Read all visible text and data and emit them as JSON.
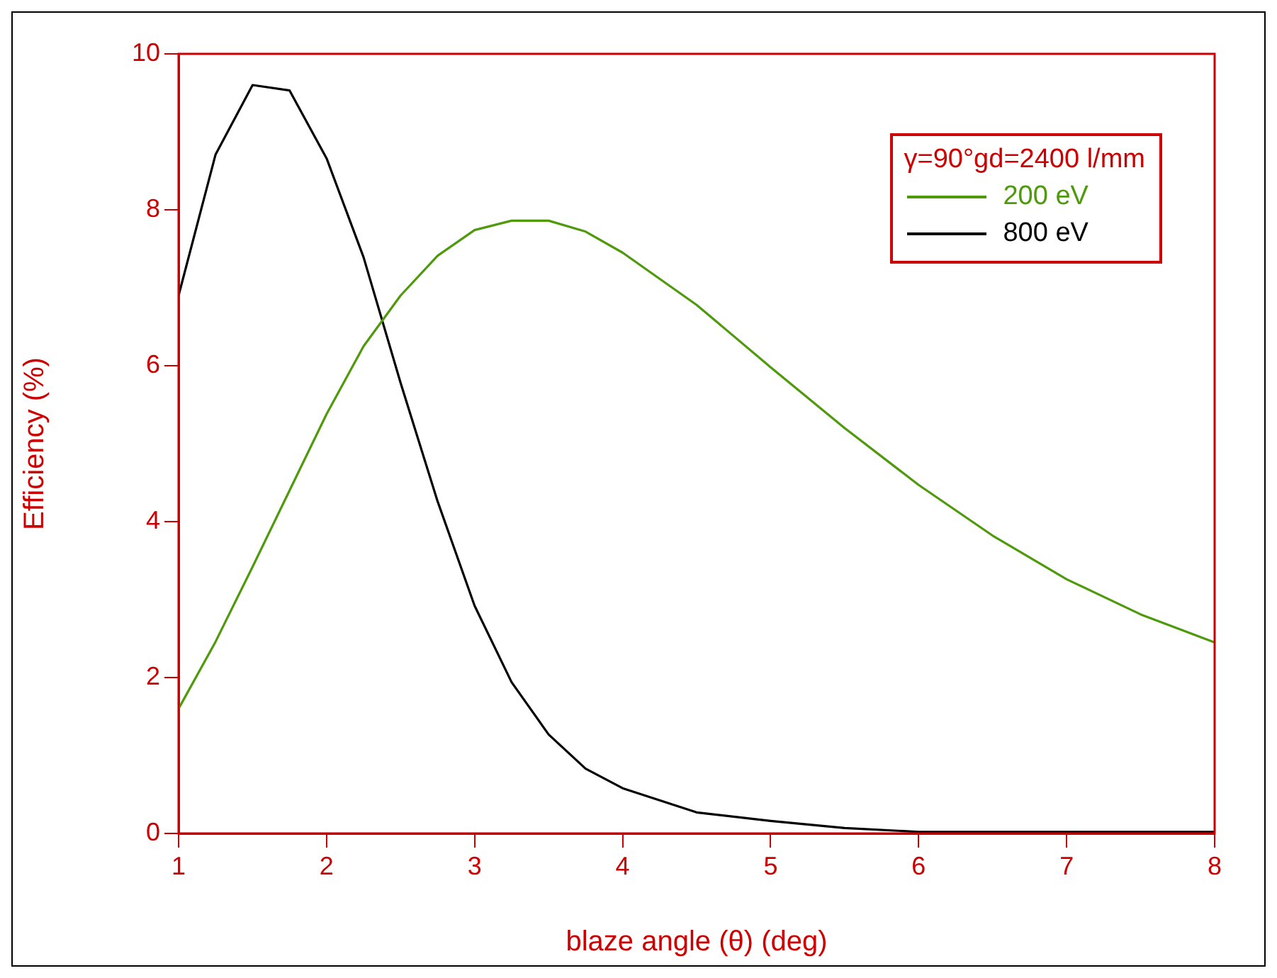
{
  "chart_data": {
    "type": "line",
    "xlabel": "blaze angle (θ) (deg)",
    "ylabel": "Efficiency (%)",
    "legend_title": "γ=90°gd=2400 l/mm",
    "legend": "top right",
    "grid": false,
    "marker": "none",
    "line_style": "solid",
    "xlim": [
      1,
      8
    ],
    "xticks": [
      1,
      2,
      3,
      4,
      5,
      6,
      7,
      8
    ],
    "ylim": [
      0,
      10
    ],
    "yticks": [
      0,
      2,
      4,
      6,
      8,
      10
    ],
    "series": [
      {
        "name": "200 eV",
        "color": "#4f9a0c",
        "x": [
          1,
          1.25,
          1.5,
          1.75,
          2,
          2.25,
          2.5,
          2.75,
          3,
          3.25,
          3.5,
          3.75,
          4,
          4.5,
          5,
          5.5,
          6,
          6.5,
          7,
          7.5,
          8
        ],
        "values": [
          1.6,
          2.46,
          3.42,
          4.4,
          5.38,
          6.25,
          6.9,
          7.41,
          7.74,
          7.86,
          7.86,
          7.72,
          7.45,
          6.78,
          5.98,
          5.2,
          4.47,
          3.82,
          3.26,
          2.81,
          2.45
        ]
      },
      {
        "name": "800 eV",
        "color": "#000000",
        "x": [
          1,
          1.25,
          1.5,
          1.75,
          2,
          2.25,
          2.5,
          2.75,
          3,
          3.25,
          3.5,
          3.75,
          4,
          4.5,
          5,
          5.5,
          6,
          7,
          8
        ],
        "values": [
          6.9,
          8.71,
          9.6,
          9.53,
          8.66,
          7.39,
          5.78,
          4.26,
          2.92,
          1.94,
          1.27,
          0.83,
          0.58,
          0.27,
          0.16,
          0.07,
          0.02,
          0.02,
          0.02
        ]
      }
    ]
  }
}
